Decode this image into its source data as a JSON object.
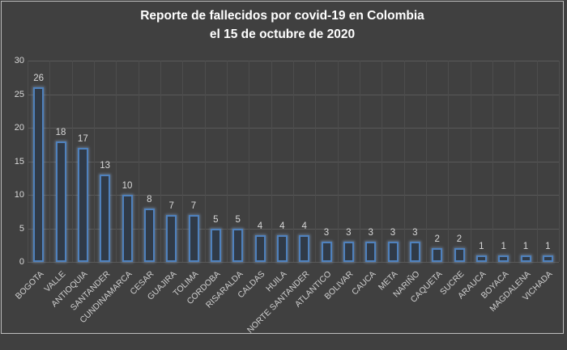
{
  "title": {
    "line1": "Reporte de fallecidos por covid-19 en Colombia",
    "line2": "el 15 de octubre de 2020"
  },
  "chart_data": {
    "type": "bar",
    "title": "Reporte de fallecidos por covid-19 en Colombia el 15 de octubre de 2020",
    "categories": [
      "BOGOTA",
      "VALLE",
      "ANTIOQUIA",
      "SANTANDER",
      "CUNDINAMARCA",
      "CESAR",
      "GUAJIRA",
      "TOLIMA",
      "CORDOBA",
      "RISARALDA",
      "CALDAS",
      "HUILA",
      "NORTE SANTANDER",
      "ATLANTICO",
      "BOLIVAR",
      "CAUCA",
      "META",
      "NARIÑO",
      "CAQUETA",
      "SUCRE",
      "ARAUCA",
      "BOYACA",
      "MAGDALENA",
      "VICHADA"
    ],
    "values": [
      26,
      18,
      17,
      13,
      10,
      8,
      7,
      7,
      5,
      5,
      4,
      4,
      4,
      3,
      3,
      3,
      3,
      3,
      2,
      2,
      1,
      1,
      1,
      1
    ],
    "xlabel": "",
    "ylabel": "",
    "ylim": [
      0,
      30
    ],
    "yticks": [
      0,
      5,
      10,
      15,
      20,
      25,
      30
    ],
    "grid": {
      "horizontal": true,
      "vertical": true
    },
    "legend_position": "none",
    "data_labels": true,
    "colors": {
      "background": "#404040",
      "frame_border": "#bdbdbd",
      "grid_horizontal": "#5a5a5a",
      "grid_vertical": "#4d4d4d",
      "bar_border": "#4f81bd",
      "bar_fill": "#303a47",
      "bar_glow": "#8fb4e3",
      "title_text": "#ffffff",
      "tick_text": "#d8d8d8",
      "axis_label_text": "#cfcfcf"
    }
  }
}
